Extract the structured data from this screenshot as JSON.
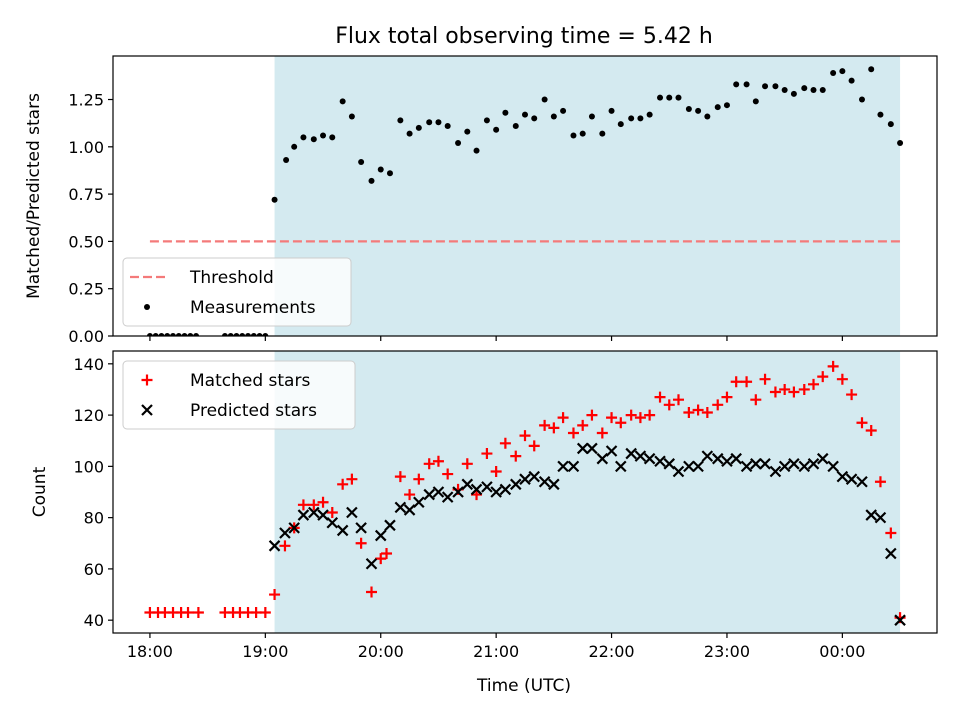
{
  "title": "Flux total observing time = 5.42 h",
  "x_axis": {
    "label": "Time (UTC)",
    "ticks": [
      {
        "value": 18.0,
        "label": "18:00"
      },
      {
        "value": 19.0,
        "label": "19:00"
      },
      {
        "value": 20.0,
        "label": "20:00"
      },
      {
        "value": 21.0,
        "label": "21:00"
      },
      {
        "value": 22.0,
        "label": "22:00"
      },
      {
        "value": 23.0,
        "label": "23:00"
      },
      {
        "value": 24.0,
        "label": "00:00"
      }
    ],
    "range": [
      17.68,
      24.82
    ]
  },
  "observing_window": {
    "start": 19.08,
    "end": 24.5,
    "color": "#d4eaf0"
  },
  "colors": {
    "threshold": "#f47a7a",
    "measurements": "#000000",
    "matched": "#ff0000",
    "predicted": "#000000"
  },
  "chart_data": [
    {
      "type": "scatter",
      "ylabel": "Matched/Predicted stars",
      "ylim": [
        0,
        1.48
      ],
      "yticks": [
        {
          "value": 0.0,
          "label": "0.00"
        },
        {
          "value": 0.25,
          "label": "0.25"
        },
        {
          "value": 0.5,
          "label": "0.50"
        },
        {
          "value": 0.75,
          "label": "0.75"
        },
        {
          "value": 1.0,
          "label": "1.00"
        },
        {
          "value": 1.25,
          "label": "1.25"
        }
      ],
      "legend": {
        "placement": "lower-left",
        "entries": [
          {
            "label": "Threshold"
          },
          {
            "label": "Measurements"
          }
        ]
      },
      "threshold": {
        "name": "Threshold",
        "y": 0.5,
        "x_range": [
          18.0,
          24.5
        ]
      },
      "series": [
        {
          "name": "Measurements",
          "x": [
            18.0,
            18.05,
            18.1,
            18.15,
            18.2,
            18.25,
            18.3,
            18.35,
            18.4,
            18.65,
            18.7,
            18.75,
            18.8,
            18.85,
            18.9,
            18.95,
            19.0,
            19.08,
            19.18,
            19.25,
            19.33,
            19.42,
            19.5,
            19.58,
            19.67,
            19.75,
            19.83,
            19.92,
            20.0,
            20.08,
            20.17,
            20.25,
            20.33,
            20.42,
            20.5,
            20.58,
            20.67,
            20.75,
            20.83,
            20.92,
            21.0,
            21.08,
            21.17,
            21.25,
            21.33,
            21.42,
            21.5,
            21.58,
            21.67,
            21.75,
            21.83,
            21.92,
            22.0,
            22.08,
            22.17,
            22.25,
            22.33,
            22.42,
            22.5,
            22.58,
            22.67,
            22.75,
            22.83,
            22.92,
            23.0,
            23.08,
            23.17,
            23.25,
            23.33,
            23.42,
            23.5,
            23.58,
            23.67,
            23.75,
            23.83,
            23.92,
            24.0,
            24.08,
            24.17,
            24.25,
            24.33,
            24.42,
            24.5
          ],
          "y": [
            0,
            0,
            0,
            0,
            0,
            0,
            0,
            0,
            0,
            0,
            0,
            0,
            0,
            0,
            0,
            0,
            0,
            0.72,
            0.93,
            1.0,
            1.05,
            1.04,
            1.06,
            1.05,
            1.24,
            1.16,
            0.92,
            0.82,
            0.88,
            0.86,
            1.14,
            1.07,
            1.1,
            1.13,
            1.13,
            1.11,
            1.02,
            1.08,
            0.98,
            1.14,
            1.09,
            1.18,
            1.11,
            1.17,
            1.15,
            1.25,
            1.16,
            1.19,
            1.06,
            1.07,
            1.16,
            1.07,
            1.19,
            1.12,
            1.15,
            1.15,
            1.17,
            1.26,
            1.26,
            1.26,
            1.2,
            1.19,
            1.16,
            1.21,
            1.22,
            1.33,
            1.33,
            1.24,
            1.32,
            1.32,
            1.3,
            1.28,
            1.31,
            1.3,
            1.3,
            1.39,
            1.4,
            1.35,
            1.25,
            1.41,
            1.17,
            1.12,
            1.02
          ]
        }
      ]
    },
    {
      "type": "scatter",
      "xlabel": "Time (UTC)",
      "ylabel": "Count",
      "ylim": [
        35,
        145
      ],
      "yticks": [
        {
          "value": 40,
          "label": "40"
        },
        {
          "value": 60,
          "label": "60"
        },
        {
          "value": 80,
          "label": "80"
        },
        {
          "value": 100,
          "label": "100"
        },
        {
          "value": 120,
          "label": "120"
        },
        {
          "value": 140,
          "label": "140"
        }
      ],
      "legend": {
        "placement": "upper-left",
        "entries": [
          {
            "label": "Matched stars"
          },
          {
            "label": "Predicted stars"
          }
        ]
      },
      "series": [
        {
          "name": "Matched stars",
          "marker": "plus",
          "x": [
            18.0,
            18.07,
            18.13,
            18.2,
            18.27,
            18.33,
            18.42,
            18.65,
            18.72,
            18.78,
            18.85,
            18.92,
            19.0,
            19.08,
            19.17,
            19.25,
            19.33,
            19.42,
            19.5,
            19.58,
            19.67,
            19.75,
            19.83,
            19.92,
            20.0,
            20.05,
            20.17,
            20.25,
            20.33,
            20.42,
            20.5,
            20.58,
            20.67,
            20.75,
            20.83,
            20.92,
            21.0,
            21.08,
            21.17,
            21.25,
            21.33,
            21.42,
            21.5,
            21.58,
            21.67,
            21.75,
            21.83,
            21.92,
            22.0,
            22.08,
            22.17,
            22.25,
            22.33,
            22.42,
            22.5,
            22.58,
            22.67,
            22.75,
            22.83,
            22.92,
            23.0,
            23.08,
            23.17,
            23.25,
            23.33,
            23.42,
            23.5,
            23.58,
            23.67,
            23.75,
            23.83,
            23.92,
            24.0,
            24.08,
            24.17,
            24.25,
            24.33,
            24.42,
            24.5
          ],
          "y": [
            43,
            43,
            43,
            43,
            43,
            43,
            43,
            43,
            43,
            43,
            43,
            43,
            43,
            50,
            69,
            76,
            85,
            85,
            86,
            82,
            93,
            95,
            70,
            51,
            64,
            66,
            96,
            89,
            95,
            101,
            102,
            97,
            91,
            101,
            89,
            105,
            98,
            109,
            104,
            112,
            108,
            116,
            115,
            119,
            113,
            116,
            120,
            113,
            119,
            117,
            120,
            119,
            120,
            127,
            124,
            126,
            121,
            122,
            121,
            124,
            127,
            133,
            133,
            126,
            134,
            129,
            130,
            129,
            130,
            132,
            135,
            139,
            134,
            128,
            117,
            114,
            94,
            74,
            41
          ]
        },
        {
          "name": "Predicted stars",
          "marker": "x",
          "x": [
            19.08,
            19.17,
            19.25,
            19.33,
            19.42,
            19.5,
            19.58,
            19.67,
            19.75,
            19.83,
            19.92,
            20.0,
            20.08,
            20.17,
            20.25,
            20.33,
            20.42,
            20.5,
            20.58,
            20.67,
            20.75,
            20.83,
            20.92,
            21.0,
            21.08,
            21.17,
            21.25,
            21.33,
            21.42,
            21.5,
            21.58,
            21.67,
            21.75,
            21.83,
            21.92,
            22.0,
            22.08,
            22.17,
            22.25,
            22.33,
            22.42,
            22.5,
            22.58,
            22.67,
            22.75,
            22.83,
            22.92,
            23.0,
            23.08,
            23.17,
            23.25,
            23.33,
            23.42,
            23.5,
            23.58,
            23.67,
            23.75,
            23.83,
            23.92,
            24.0,
            24.08,
            24.17,
            24.25,
            24.33,
            24.42,
            24.5
          ],
          "y": [
            69,
            74,
            76,
            81,
            82,
            81,
            78,
            75,
            82,
            76,
            62,
            73,
            77,
            84,
            83,
            86,
            89,
            90,
            88,
            90,
            93,
            91,
            92,
            90,
            91,
            93,
            95,
            96,
            94,
            93,
            100,
            100,
            107,
            107,
            103,
            106,
            100,
            105,
            104,
            103,
            102,
            101,
            98,
            100,
            100,
            104,
            103,
            102,
            103,
            100,
            101,
            101,
            98,
            100,
            101,
            100,
            101,
            103,
            100,
            96,
            95,
            94,
            81,
            80,
            66,
            40
          ]
        }
      ]
    }
  ]
}
